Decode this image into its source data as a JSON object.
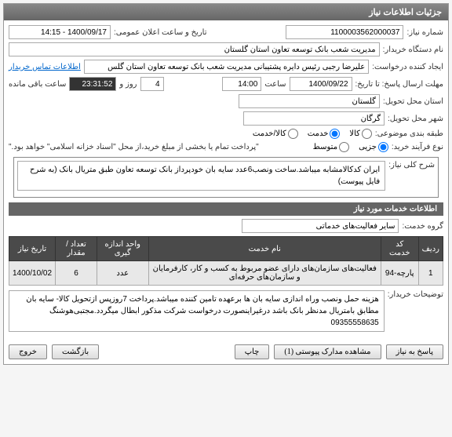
{
  "panel_title": "جزئیات اطلاعات نیاز",
  "f": {
    "need_no_label": "شماره نیاز:",
    "need_no": "1100003562000037",
    "announce_label": "تاریخ و ساعت اعلان عمومی:",
    "announce_value": "1400/09/17 - 14:15",
    "buyer_label": "نام دستگاه خریدار:",
    "buyer_value": "مدیریت شعب بانک توسعه تعاون استان گلستان",
    "creator_label": "ایجاد کننده درخواست:",
    "creator_value": "علیرضا رجبی رئیس دایره پشتیبانی مدیریت شعب بانک توسعه تعاون استان گلس",
    "contact_link": "اطلاعات تماس خریدار",
    "deadline_label": "مهلت ارسال پاسخ: تا تاریخ:",
    "deadline_date": "1400/09/22",
    "hour_label": "ساعت",
    "deadline_hour": "14:00",
    "day_label": "روز و",
    "days_left": "4",
    "countdown": "23:31:52",
    "remain_label": "ساعت باقی مانده",
    "province_label": "استان محل تحویل:",
    "province_value": "گلستان",
    "city_label": "شهر محل تحویل:",
    "city_value": "گرگان",
    "subject_class_label": "طبقه بندی موضوعی:",
    "r_goods": "کالا",
    "r_service": "خدمت",
    "r_goods_service": "کالا/خدمت",
    "process_label": "نوع فرآیند خرید:",
    "r_minor": "جزیی",
    "r_medium": "متوسط",
    "process_note": "\"پرداخت تمام یا بخشی از مبلغ خرید،از محل \"اسناد خزانه اسلامی\" خواهد بود.\"",
    "desc_label": "شرح کلی نیاز:",
    "desc_value": "ایران کدکالامشابه میباشد.ساخت ونصب6عدد سایه بان خودپرداز بانک توسعه تعاون طبق متریال بانک (به شرح فایل پیوست)",
    "services_header": "اطلاعات خدمات مورد نیاز",
    "group_label": "گروه خدمت:",
    "group_value": "سایر فعالیت‌های خدماتی",
    "buyer_notes_label": "توضیحات خریدار:",
    "buyer_notes_value": "هزینه حمل ونصب وراه اندازی سایه بان ها برعهده تامین کننده میباشد.پرداخت 7روزپس ازتحویل کالا- سایه بان مطابق بامتریال مدنظر بانک باشد درغیراینصورت درخواست شرکت مذکور ابطال میگردد.مجتبی‌هوشنگ 09355558635"
  },
  "table": {
    "headers": [
      "ردیف",
      "کد خدمت",
      "نام خدمت",
      "واحد اندازه گیری",
      "تعداد / مقدار",
      "تاریخ نیاز"
    ],
    "rows": [
      [
        "1",
        "پارچه-94",
        "فعالیت‌های سازمان‌های دارای عضو مربوط به کسب و کار، کارفرمایان و سازمان‌های حرفه‌ای",
        "عدد",
        "6",
        "1400/10/02"
      ]
    ]
  },
  "buttons": {
    "reply": "پاسخ به نیاز",
    "attachments": "مشاهده مدارک پیوستی (1)",
    "print": "چاپ",
    "back": "بازگشت",
    "exit": "خروج"
  }
}
